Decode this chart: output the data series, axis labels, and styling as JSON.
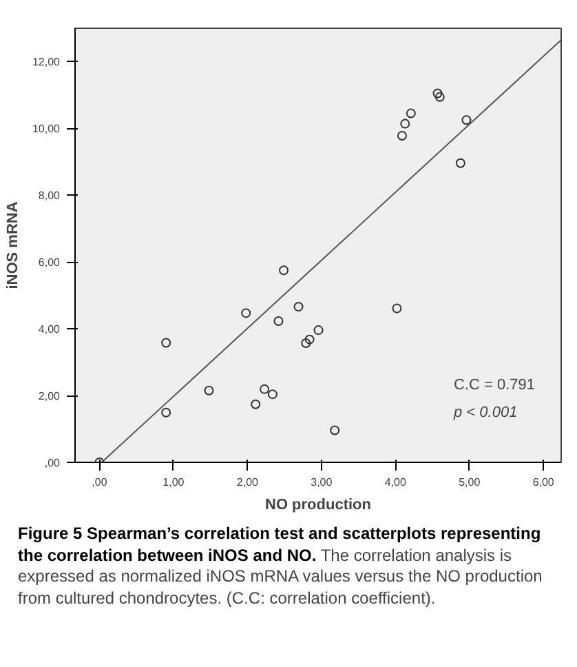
{
  "chart_data": {
    "type": "scatter",
    "title": "Figure 5 Spearman’s correlation test and scatterplots representing the correlation between iNOS and NO.",
    "subtitle": "The correlation analysis is expressed as normalized iNOS mRNA values versus the NO production from cultured chondrocytes. (C.C: correlation coefficient).",
    "xlabel": "NO production",
    "ylabel": "iNOS mRNA",
    "annotations": [
      "C.C = 0.791",
      "p < 0.001"
    ],
    "grid": false,
    "xlim": [
      -0.33,
      6.24
    ],
    "ylim": [
      0,
      13
    ],
    "xticks": [
      {
        "value": 0,
        "label": ",00"
      },
      {
        "value": 1,
        "label": "1,00"
      },
      {
        "value": 2,
        "label": "2,00"
      },
      {
        "value": 3,
        "label": "3,00"
      },
      {
        "value": 4,
        "label": "4,00"
      },
      {
        "value": 5,
        "label": "5,00"
      },
      {
        "value": 6,
        "label": "6,00"
      }
    ],
    "yticks": [
      {
        "value": 0,
        "label": ",00"
      },
      {
        "value": 2,
        "label": "2,00"
      },
      {
        "value": 4,
        "label": "4,00"
      },
      {
        "value": 6,
        "label": "6,00"
      },
      {
        "value": 8,
        "label": "8,00"
      },
      {
        "value": 10,
        "label": "10,00"
      },
      {
        "value": 12,
        "label": "12,00"
      }
    ],
    "series": [
      {
        "marker": "circle",
        "color": "#333333",
        "x": [
          0,
          0.9,
          0.9,
          1.48,
          1.98,
          2.11,
          2.23,
          2.34,
          2.42,
          2.49,
          2.69,
          2.79,
          2.84,
          2.96,
          3.18,
          4.02,
          4.09,
          4.13,
          4.21,
          4.57,
          4.6,
          4.88,
          4.96
        ],
        "values": [
          0,
          3.58,
          1.49,
          2.15,
          4.47,
          1.74,
          2.19,
          2.04,
          4.23,
          5.75,
          4.66,
          3.57,
          3.68,
          3.96,
          0.96,
          4.61,
          9.78,
          10.14,
          10.45,
          11.05,
          10.94,
          8.96,
          10.25
        ]
      },
      {
        "type": "line",
        "marker": "none",
        "color": "#555555",
        "x": [
          0.03,
          6.24
        ],
        "values": [
          0,
          12.65
        ]
      }
    ]
  }
}
